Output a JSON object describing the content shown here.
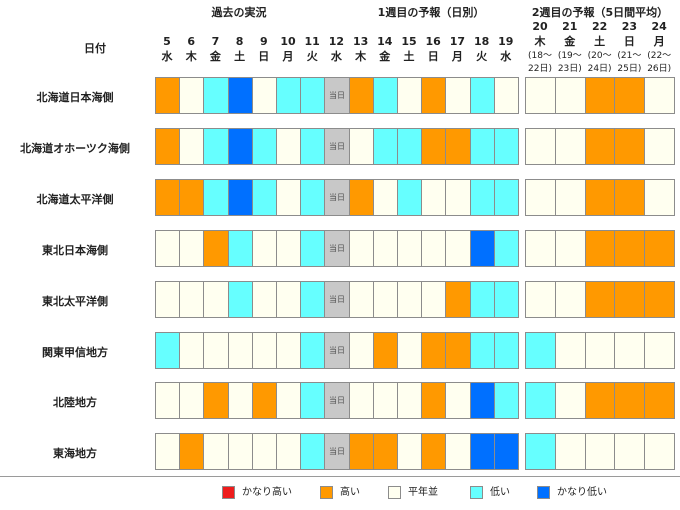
{
  "sections": {
    "past": "過去の実況",
    "week1": "1週目の予報（日別）",
    "week2": "2週目の予報（5日間平均）"
  },
  "header": {
    "date_label": "日付"
  },
  "days": [
    {
      "d": "5",
      "w": "水"
    },
    {
      "d": "6",
      "w": "木"
    },
    {
      "d": "7",
      "w": "金"
    },
    {
      "d": "8",
      "w": "土"
    },
    {
      "d": "9",
      "w": "日"
    },
    {
      "d": "10",
      "w": "月"
    },
    {
      "d": "11",
      "w": "火"
    },
    {
      "d": "12",
      "w": "水"
    },
    {
      "d": "13",
      "w": "木"
    },
    {
      "d": "14",
      "w": "金"
    },
    {
      "d": "15",
      "w": "土"
    },
    {
      "d": "16",
      "w": "日"
    },
    {
      "d": "17",
      "w": "月"
    },
    {
      "d": "18",
      "w": "火"
    },
    {
      "d": "19",
      "w": "水"
    }
  ],
  "week2_days": [
    {
      "d": "20",
      "w": "木",
      "s1": "(18～",
      "s2": "22日)"
    },
    {
      "d": "21",
      "w": "金",
      "s1": "(19～",
      "s2": "23日)"
    },
    {
      "d": "22",
      "w": "土",
      "s1": "(20～",
      "s2": "24日)"
    },
    {
      "d": "23",
      "w": "日",
      "s1": "(21～",
      "s2": "25日)"
    },
    {
      "d": "24",
      "w": "月",
      "s1": "(22～",
      "s2": "26日)"
    }
  ],
  "today_label": "当日",
  "palette": {
    "H2": "#ee1c1c",
    "H": "#ff9900",
    "N": "#fffff0",
    "L": "#66ffff",
    "L2": "#0070ff",
    "T": "#c8c8c8"
  },
  "regions": [
    {
      "name": "北海道日本海側",
      "days": [
        "H",
        "N",
        "L",
        "L2",
        "N",
        "L",
        "L",
        "T",
        "H",
        "L",
        "N",
        "H",
        "N",
        "L",
        "N"
      ],
      "week2": [
        "N",
        "N",
        "H",
        "H",
        "N"
      ]
    },
    {
      "name": "北海道オホーツク海側",
      "days": [
        "H",
        "N",
        "L",
        "L2",
        "L",
        "N",
        "L",
        "T",
        "N",
        "L",
        "L",
        "H",
        "H",
        "L",
        "L"
      ],
      "week2": [
        "N",
        "N",
        "H",
        "H",
        "N"
      ]
    },
    {
      "name": "北海道太平洋側",
      "days": [
        "H",
        "H",
        "L",
        "L2",
        "L",
        "N",
        "L",
        "T",
        "H",
        "N",
        "L",
        "N",
        "N",
        "L",
        "L"
      ],
      "week2": [
        "N",
        "N",
        "H",
        "H",
        "N"
      ]
    },
    {
      "name": "東北日本海側",
      "days": [
        "N",
        "N",
        "H",
        "L",
        "N",
        "N",
        "L",
        "T",
        "N",
        "N",
        "N",
        "N",
        "N",
        "L2",
        "L"
      ],
      "week2": [
        "N",
        "N",
        "H",
        "H",
        "H"
      ]
    },
    {
      "name": "東北太平洋側",
      "days": [
        "N",
        "N",
        "N",
        "L",
        "N",
        "N",
        "L",
        "T",
        "N",
        "N",
        "N",
        "N",
        "H",
        "L",
        "L"
      ],
      "week2": [
        "N",
        "N",
        "H",
        "H",
        "H"
      ]
    },
    {
      "name": "関東甲信地方",
      "days": [
        "L",
        "N",
        "N",
        "N",
        "N",
        "N",
        "L",
        "T",
        "N",
        "H",
        "N",
        "H",
        "H",
        "L",
        "L"
      ],
      "week2": [
        "L",
        "N",
        "N",
        "N",
        "N"
      ]
    },
    {
      "name": "北陸地方",
      "days": [
        "N",
        "N",
        "H",
        "N",
        "H",
        "N",
        "L",
        "T",
        "N",
        "N",
        "N",
        "H",
        "N",
        "L2",
        "L"
      ],
      "week2": [
        "L",
        "N",
        "H",
        "H",
        "H"
      ]
    },
    {
      "name": "東海地方",
      "days": [
        "N",
        "H",
        "N",
        "N",
        "N",
        "N",
        "L",
        "T",
        "H",
        "H",
        "N",
        "H",
        "N",
        "L2",
        "L2"
      ],
      "week2": [
        "L",
        "N",
        "N",
        "N",
        "N"
      ]
    }
  ],
  "legend": [
    {
      "key": "H2",
      "label": "かなり高い"
    },
    {
      "key": "H",
      "label": "高い"
    },
    {
      "key": "N",
      "label": "平年並"
    },
    {
      "key": "L",
      "label": "低い"
    },
    {
      "key": "L2",
      "label": "かなり低い"
    }
  ]
}
